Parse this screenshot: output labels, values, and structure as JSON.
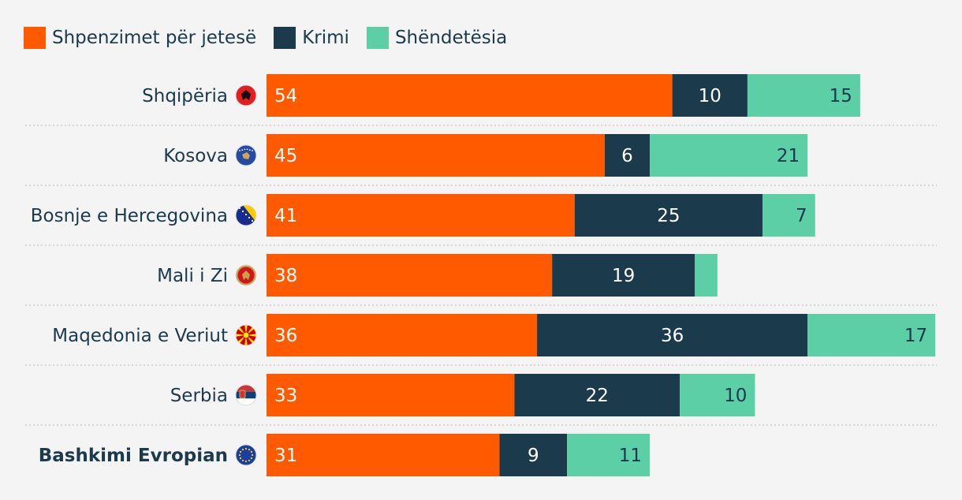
{
  "chart_data": {
    "type": "bar",
    "orientation": "horizontal",
    "stacked": true,
    "categories": [
      "Shqipëria",
      "Kosova",
      "Bosnje e Hercegovina",
      "Mali i Zi",
      "Maqedonia e Veriut",
      "Serbia",
      "Bashkimi Evropian"
    ],
    "flag_icons": [
      "albania-flag-icon",
      "kosovo-flag-icon",
      "bosnia-flag-icon",
      "montenegro-flag-icon",
      "north-macedonia-flag-icon",
      "serbia-flag-icon",
      "eu-flag-icon"
    ],
    "highlighted_category": "Bashkimi Evropian",
    "series": [
      {
        "name": "Shpenzimet për jetesë",
        "color": "#ff5a00",
        "values": [
          54,
          45,
          41,
          38,
          36,
          33,
          31
        ],
        "labels": [
          "54",
          "45",
          "41",
          "38",
          "36",
          "33",
          "31"
        ]
      },
      {
        "name": "Krimi",
        "color": "#1b3a4b",
        "values": [
          10,
          6,
          25,
          19,
          36,
          22,
          9
        ],
        "labels": [
          "10",
          "6",
          "25",
          "19",
          "36",
          "22",
          "9"
        ]
      },
      {
        "name": "Shëndetësia",
        "color": "#5ccfa6",
        "values": [
          15,
          21,
          7,
          3,
          17,
          10,
          11
        ],
        "labels": [
          "15",
          "21",
          "7",
          "",
          "17",
          "10",
          "11"
        ]
      }
    ],
    "legend_position": "top-left",
    "grid": false
  }
}
